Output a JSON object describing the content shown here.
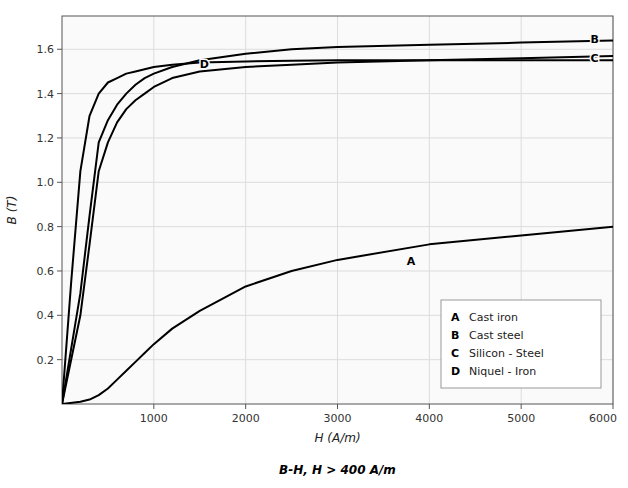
{
  "chart_data": {
    "type": "line",
    "subtitle": "B-H, H > 400 A/m",
    "x_label": "H (A/m)",
    "y_label": "B (T)",
    "xlim": [
      0,
      6000
    ],
    "ylim": [
      0,
      1.75
    ],
    "xticks": [
      1000,
      2000,
      3000,
      4000,
      5000,
      6000
    ],
    "yticks": [
      0.2,
      0.4,
      0.6,
      0.8,
      {
        "value": 1,
        "label": "1.0"
      },
      1.2,
      1.4,
      1.6
    ],
    "grid": true,
    "legend": "lower right",
    "series": [
      {
        "name": "Cast iron",
        "color": "#000000",
        "x": [
          0,
          200,
          300,
          400,
          500,
          600,
          700,
          800,
          900,
          1000,
          1200,
          1500,
          2000,
          2500,
          3000,
          4000,
          5000,
          6000
        ],
        "values": [
          0.0,
          0.01,
          0.02,
          0.04,
          0.07,
          0.11,
          0.15,
          0.19,
          0.23,
          0.27,
          0.34,
          0.42,
          0.53,
          0.6,
          0.65,
          0.72,
          0.76,
          0.8
        ]
      },
      {
        "name": "Cast steel",
        "color": "#000000",
        "x": [
          0,
          200,
          300,
          400,
          500,
          600,
          700,
          800,
          900,
          1000,
          1200,
          1500,
          2000,
          2500,
          3000,
          4000,
          5000,
          6000
        ],
        "values": [
          0.0,
          0.5,
          0.85,
          1.18,
          1.28,
          1.35,
          1.4,
          1.44,
          1.47,
          1.49,
          1.52,
          1.55,
          1.58,
          1.6,
          1.61,
          1.62,
          1.63,
          1.64
        ]
      },
      {
        "name": "Silicon - Steel",
        "color": "#000000",
        "x": [
          0,
          200,
          300,
          400,
          500,
          600,
          700,
          800,
          900,
          1000,
          1200,
          1500,
          2000,
          2500,
          3000,
          4000,
          5000,
          6000
        ],
        "values": [
          0.0,
          0.4,
          0.72,
          1.05,
          1.18,
          1.27,
          1.33,
          1.37,
          1.4,
          1.43,
          1.47,
          1.5,
          1.52,
          1.53,
          1.54,
          1.55,
          1.56,
          1.57
        ]
      },
      {
        "name": "Niquel - Iron",
        "color": "#000000",
        "x": [
          0,
          100,
          200,
          300,
          400,
          500,
          600,
          700,
          800,
          900,
          1000,
          1200,
          1500,
          2000,
          2500,
          3000,
          4000,
          5000,
          6000
        ],
        "values": [
          0.0,
          0.55,
          1.05,
          1.3,
          1.4,
          1.45,
          1.47,
          1.49,
          1.5,
          1.51,
          1.52,
          1.53,
          1.54,
          1.545,
          1.548,
          1.55,
          1.55,
          1.55,
          1.55
        ]
      }
    ],
    "annotations": [
      {
        "text": "A",
        "x": 3800,
        "y": 0.645
      },
      {
        "text": "B",
        "x": 5800,
        "y": 1.645
      },
      {
        "text": "C",
        "x": 5800,
        "y": 1.56
      },
      {
        "text": "D",
        "x": 1550,
        "y": 1.535
      }
    ]
  }
}
